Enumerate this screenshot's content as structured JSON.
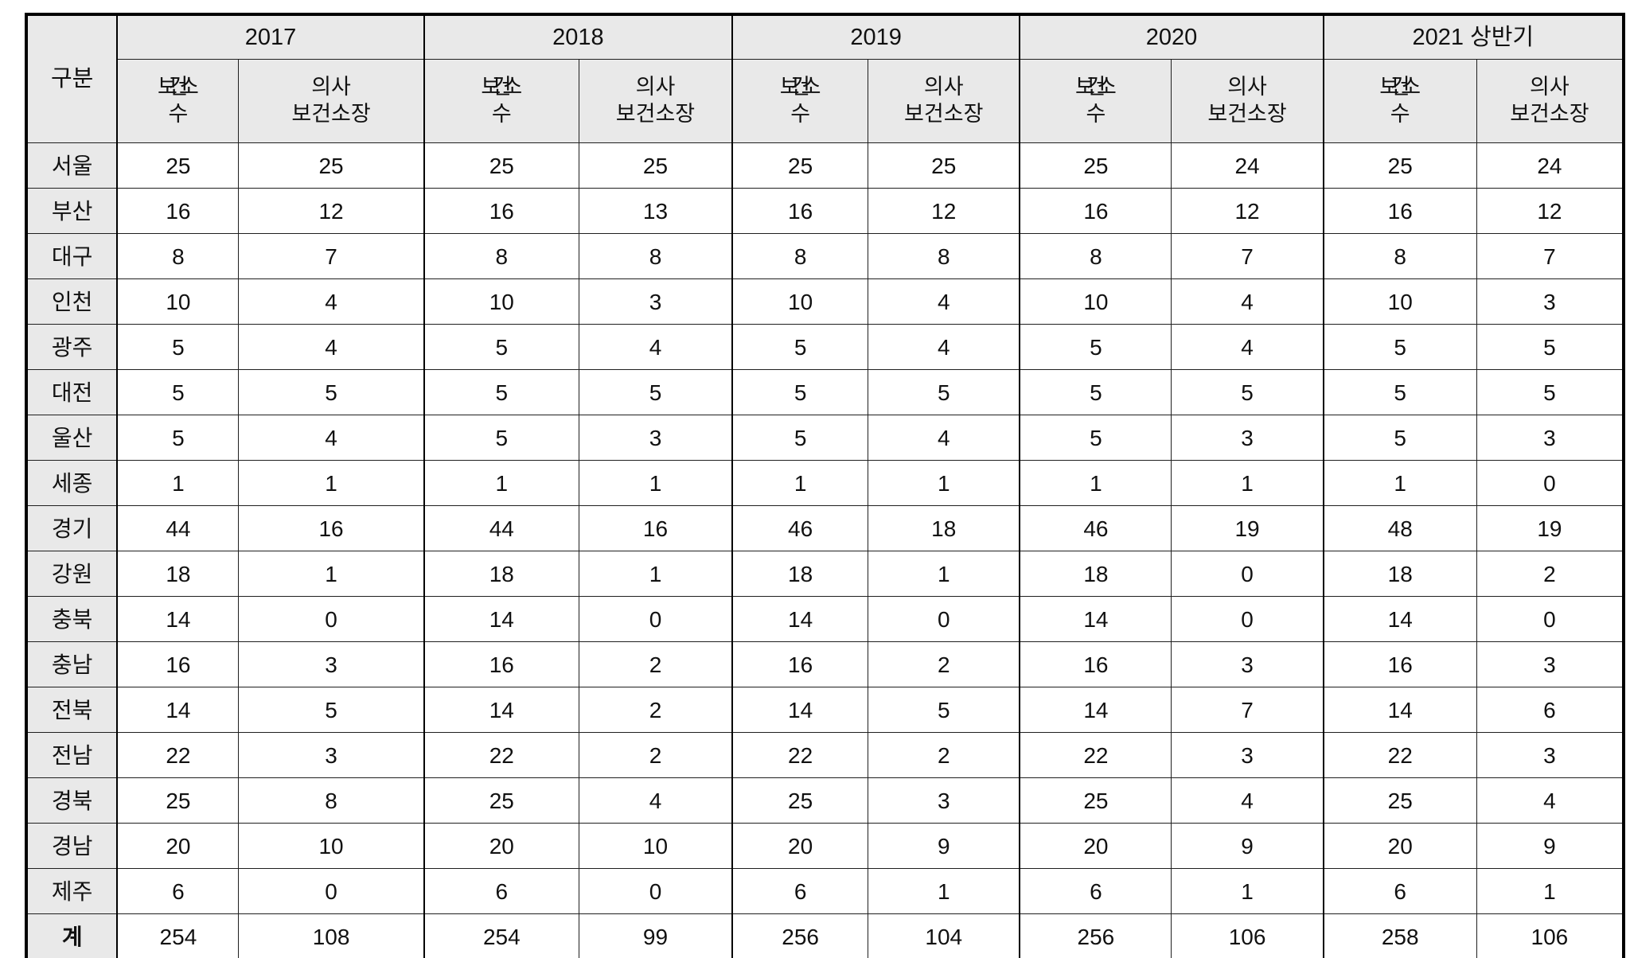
{
  "table": {
    "corner_label": "구분",
    "year_groups": [
      "2017",
      "2018",
      "2019",
      "2020",
      "2021 상반기"
    ],
    "sub_headers": {
      "centers_line1": "보건소",
      "centers_line2": "수",
      "doctor_line1": "의사",
      "doctor_line2": "보건소장"
    },
    "rows": [
      {
        "region": "서울",
        "values": [
          25,
          25,
          25,
          25,
          25,
          25,
          25,
          24,
          25,
          24
        ]
      },
      {
        "region": "부산",
        "values": [
          16,
          12,
          16,
          13,
          16,
          12,
          16,
          12,
          16,
          12
        ]
      },
      {
        "region": "대구",
        "values": [
          8,
          7,
          8,
          8,
          8,
          8,
          8,
          7,
          8,
          7
        ]
      },
      {
        "region": "인천",
        "values": [
          10,
          4,
          10,
          3,
          10,
          4,
          10,
          4,
          10,
          3
        ]
      },
      {
        "region": "광주",
        "values": [
          5,
          4,
          5,
          4,
          5,
          4,
          5,
          4,
          5,
          5
        ]
      },
      {
        "region": "대전",
        "values": [
          5,
          5,
          5,
          5,
          5,
          5,
          5,
          5,
          5,
          5
        ]
      },
      {
        "region": "울산",
        "values": [
          5,
          4,
          5,
          3,
          5,
          4,
          5,
          3,
          5,
          3
        ]
      },
      {
        "region": "세종",
        "values": [
          1,
          1,
          1,
          1,
          1,
          1,
          1,
          1,
          1,
          0
        ]
      },
      {
        "region": "경기",
        "values": [
          44,
          16,
          44,
          16,
          46,
          18,
          46,
          19,
          48,
          19
        ]
      },
      {
        "region": "강원",
        "values": [
          18,
          1,
          18,
          1,
          18,
          1,
          18,
          0,
          18,
          2
        ]
      },
      {
        "region": "충북",
        "values": [
          14,
          0,
          14,
          0,
          14,
          0,
          14,
          0,
          14,
          0
        ]
      },
      {
        "region": "충남",
        "values": [
          16,
          3,
          16,
          2,
          16,
          2,
          16,
          3,
          16,
          3
        ]
      },
      {
        "region": "전북",
        "values": [
          14,
          5,
          14,
          2,
          14,
          5,
          14,
          7,
          14,
          6
        ]
      },
      {
        "region": "전남",
        "values": [
          22,
          3,
          22,
          2,
          22,
          2,
          22,
          3,
          22,
          3
        ]
      },
      {
        "region": "경북",
        "values": [
          25,
          8,
          25,
          4,
          25,
          3,
          25,
          4,
          25,
          4
        ]
      },
      {
        "region": "경남",
        "values": [
          20,
          10,
          20,
          10,
          20,
          9,
          20,
          9,
          20,
          9
        ]
      },
      {
        "region": "제주",
        "values": [
          6,
          0,
          6,
          0,
          6,
          1,
          6,
          1,
          6,
          1
        ]
      }
    ],
    "total_row": {
      "region": "계",
      "values": [
        254,
        108,
        254,
        99,
        256,
        104,
        256,
        106,
        258,
        106
      ],
      "bold_indices": [
        1,
        3
      ]
    }
  }
}
